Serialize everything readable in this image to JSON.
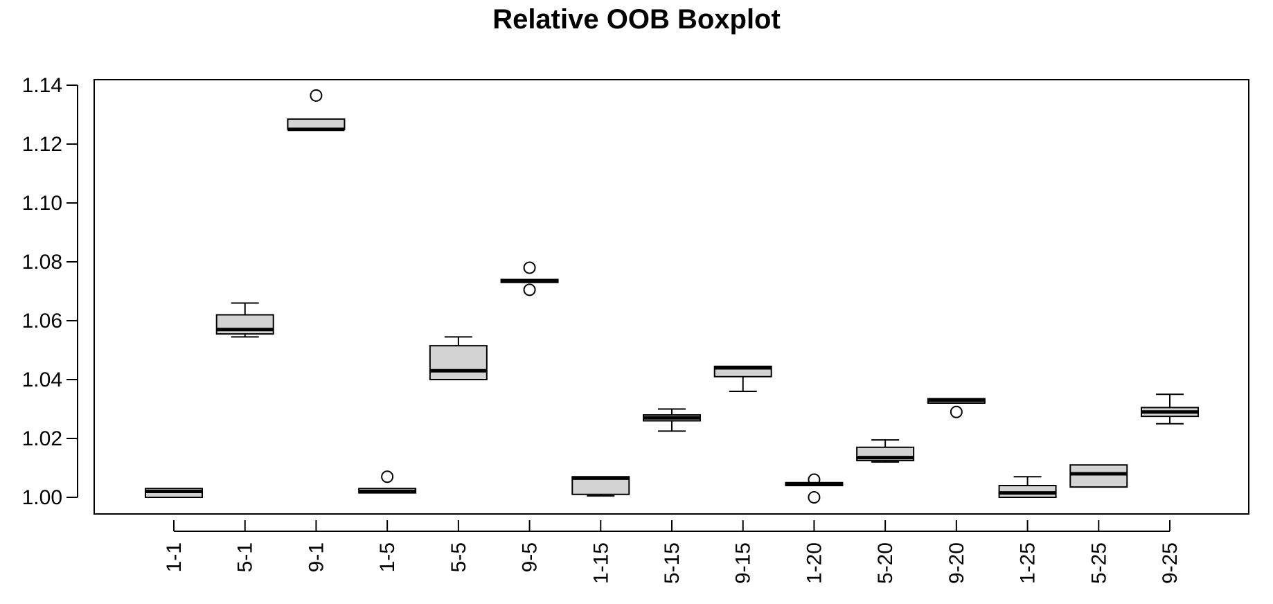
{
  "chart_data": {
    "type": "boxplot",
    "title": "Relative OOB Boxplot",
    "xlabel": "",
    "ylabel": "",
    "ylim": [
      0.995,
      1.142
    ],
    "y_ticks": [
      "1.00",
      "1.02",
      "1.04",
      "1.06",
      "1.08",
      "1.10",
      "1.12",
      "1.14"
    ],
    "y_tick_values": [
      1.0,
      1.02,
      1.04,
      1.06,
      1.08,
      1.1,
      1.12,
      1.14
    ],
    "categories": [
      "1-1",
      "5-1",
      "9-1",
      "1-5",
      "5-5",
      "9-5",
      "1-15",
      "5-15",
      "9-15",
      "1-20",
      "5-20",
      "9-20",
      "1-25",
      "5-25",
      "9-25"
    ],
    "boxes": [
      {
        "label": "1-1",
        "whisker_low": 1.0,
        "q1": 1.0,
        "median": 1.002,
        "q3": 1.003,
        "whisker_high": 1.003,
        "outliers": []
      },
      {
        "label": "5-1",
        "whisker_low": 1.0545,
        "q1": 1.0555,
        "median": 1.057,
        "q3": 1.062,
        "whisker_high": 1.066,
        "outliers": []
      },
      {
        "label": "9-1",
        "whisker_low": 1.125,
        "q1": 1.125,
        "median": 1.125,
        "q3": 1.1285,
        "whisker_high": 1.1285,
        "outliers": [
          1.1365
        ]
      },
      {
        "label": "1-5",
        "whisker_low": 1.0015,
        "q1": 1.0015,
        "median": 1.002,
        "q3": 1.003,
        "whisker_high": 1.003,
        "outliers": [
          1.007
        ]
      },
      {
        "label": "5-5",
        "whisker_low": 1.04,
        "q1": 1.04,
        "median": 1.043,
        "q3": 1.0515,
        "whisker_high": 1.0545,
        "outliers": []
      },
      {
        "label": "9-5",
        "whisker_low": 1.073,
        "q1": 1.073,
        "median": 1.0735,
        "q3": 1.074,
        "whisker_high": 1.074,
        "outliers": [
          1.078,
          1.0705
        ]
      },
      {
        "label": "1-15",
        "whisker_low": 1.0005,
        "q1": 1.001,
        "median": 1.0065,
        "q3": 1.007,
        "whisker_high": 1.007,
        "outliers": []
      },
      {
        "label": "5-15",
        "whisker_low": 1.0225,
        "q1": 1.026,
        "median": 1.027,
        "q3": 1.028,
        "whisker_high": 1.03,
        "outliers": []
      },
      {
        "label": "9-15",
        "whisker_low": 1.036,
        "q1": 1.041,
        "median": 1.044,
        "q3": 1.0445,
        "whisker_high": 1.0445,
        "outliers": []
      },
      {
        "label": "1-20",
        "whisker_low": 1.004,
        "q1": 1.004,
        "median": 1.0045,
        "q3": 1.005,
        "whisker_high": 1.005,
        "outliers": [
          1.006,
          1.0
        ]
      },
      {
        "label": "5-20",
        "whisker_low": 1.012,
        "q1": 1.0125,
        "median": 1.0135,
        "q3": 1.017,
        "whisker_high": 1.0195,
        "outliers": []
      },
      {
        "label": "9-20",
        "whisker_low": 1.032,
        "q1": 1.032,
        "median": 1.033,
        "q3": 1.0335,
        "whisker_high": 1.0335,
        "outliers": [
          1.029
        ]
      },
      {
        "label": "1-25",
        "whisker_low": 1.0,
        "q1": 1.0,
        "median": 1.0015,
        "q3": 1.004,
        "whisker_high": 1.007,
        "outliers": []
      },
      {
        "label": "5-25",
        "whisker_low": 1.0035,
        "q1": 1.0035,
        "median": 1.008,
        "q3": 1.011,
        "whisker_high": 1.011,
        "outliers": []
      },
      {
        "label": "9-25",
        "whisker_low": 1.025,
        "q1": 1.0275,
        "median": 1.029,
        "q3": 1.0305,
        "whisker_high": 1.035,
        "outliers": []
      }
    ],
    "box_fill": "#d3d3d3",
    "line_color": "#000000",
    "grid": false,
    "legend": "none"
  }
}
